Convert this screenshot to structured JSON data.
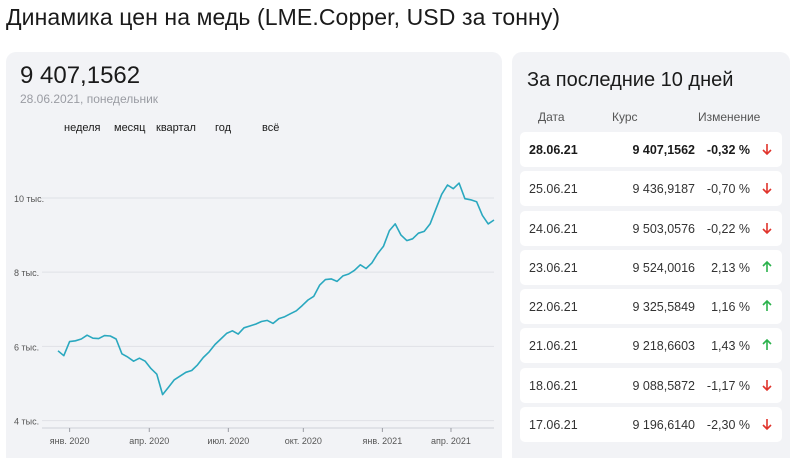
{
  "page": {
    "title": "Динамика цен на медь (LME.Copper, USD за тонну)"
  },
  "summary": {
    "price": "9 407,1562",
    "date": "28.06.2021, понедельник"
  },
  "periods": [
    "неделя",
    "месяц",
    "квартал",
    "год",
    "всё"
  ],
  "colors": {
    "line": "#2aa8bf",
    "up": "#2bb24c",
    "down": "#e0332b",
    "card": "#f2f3f6"
  },
  "chart_data": {
    "type": "line",
    "title": "",
    "xlabel": "",
    "ylabel": "",
    "ylim": [
      3800,
      10700
    ],
    "xlim": [
      0,
      75
    ],
    "y_ticks": [
      {
        "value": 4000,
        "label": "4 тыс."
      },
      {
        "value": 6000,
        "label": "6 тыс."
      },
      {
        "value": 8000,
        "label": "8 тыс."
      },
      {
        "value": 10000,
        "label": "10 тыс."
      }
    ],
    "x_ticks": [
      {
        "value": 2.0,
        "label": "янв. 2020"
      },
      {
        "value": 15.7,
        "label": "апр. 2020"
      },
      {
        "value": 29.3,
        "label": "июл. 2020"
      },
      {
        "value": 42.2,
        "label": "окт. 2020"
      },
      {
        "value": 55.8,
        "label": "янв. 2021"
      },
      {
        "value": 67.6,
        "label": "апр. 2021"
      }
    ],
    "series": [
      {
        "name": "LME.Copper",
        "x": [
          0,
          1,
          2,
          3,
          4,
          5,
          6,
          7,
          8,
          9,
          10,
          11,
          12,
          13,
          14,
          15,
          16,
          17,
          18,
          19,
          20,
          21,
          22,
          23,
          24,
          25,
          26,
          27,
          28,
          29,
          30,
          31,
          32,
          33,
          34,
          35,
          36,
          37,
          38,
          39,
          40,
          41,
          42,
          43,
          44,
          45,
          46,
          47,
          48,
          49,
          50,
          51,
          52,
          53,
          54,
          55,
          56,
          57,
          58,
          59,
          60,
          61,
          62,
          63,
          64,
          65,
          66,
          67,
          68,
          69,
          70,
          71,
          72,
          73,
          74,
          75
        ],
        "values": [
          5880,
          5750,
          6130,
          6150,
          6200,
          6300,
          6220,
          6210,
          6290,
          6280,
          6200,
          5800,
          5710,
          5600,
          5680,
          5600,
          5400,
          5250,
          4700,
          4900,
          5100,
          5200,
          5300,
          5350,
          5500,
          5700,
          5850,
          6050,
          6200,
          6350,
          6420,
          6330,
          6500,
          6550,
          6600,
          6670,
          6700,
          6620,
          6750,
          6800,
          6880,
          6960,
          7100,
          7250,
          7350,
          7650,
          7800,
          7820,
          7750,
          7900,
          7950,
          8050,
          8200,
          8100,
          8250,
          8500,
          8700,
          9120,
          9300,
          9000,
          8850,
          8900,
          9050,
          9100,
          9300,
          9700,
          10100,
          10350,
          10250,
          10400,
          9980,
          9950,
          9900,
          9530,
          9300,
          9407
        ]
      }
    ]
  },
  "table": {
    "title": "За последние 10 дней",
    "headers": {
      "date": "Дата",
      "rate": "Курс",
      "change": "Изменение"
    },
    "rows": [
      {
        "date": "28.06.21",
        "rate": "9 407,1562",
        "change": "-0,32 %",
        "direction": "down"
      },
      {
        "date": "25.06.21",
        "rate": "9 436,9187",
        "change": "-0,70 %",
        "direction": "down"
      },
      {
        "date": "24.06.21",
        "rate": "9 503,0576",
        "change": "-0,22 %",
        "direction": "down"
      },
      {
        "date": "23.06.21",
        "rate": "9 524,0016",
        "change": "2,13 %",
        "direction": "up"
      },
      {
        "date": "22.06.21",
        "rate": "9 325,5849",
        "change": "1,16 %",
        "direction": "up"
      },
      {
        "date": "21.06.21",
        "rate": "9 218,6603",
        "change": "1,43 %",
        "direction": "up"
      },
      {
        "date": "18.06.21",
        "rate": "9 088,5872",
        "change": "-1,17 %",
        "direction": "down"
      },
      {
        "date": "17.06.21",
        "rate": "9 196,6140",
        "change": "-2,30 %",
        "direction": "down"
      }
    ]
  }
}
